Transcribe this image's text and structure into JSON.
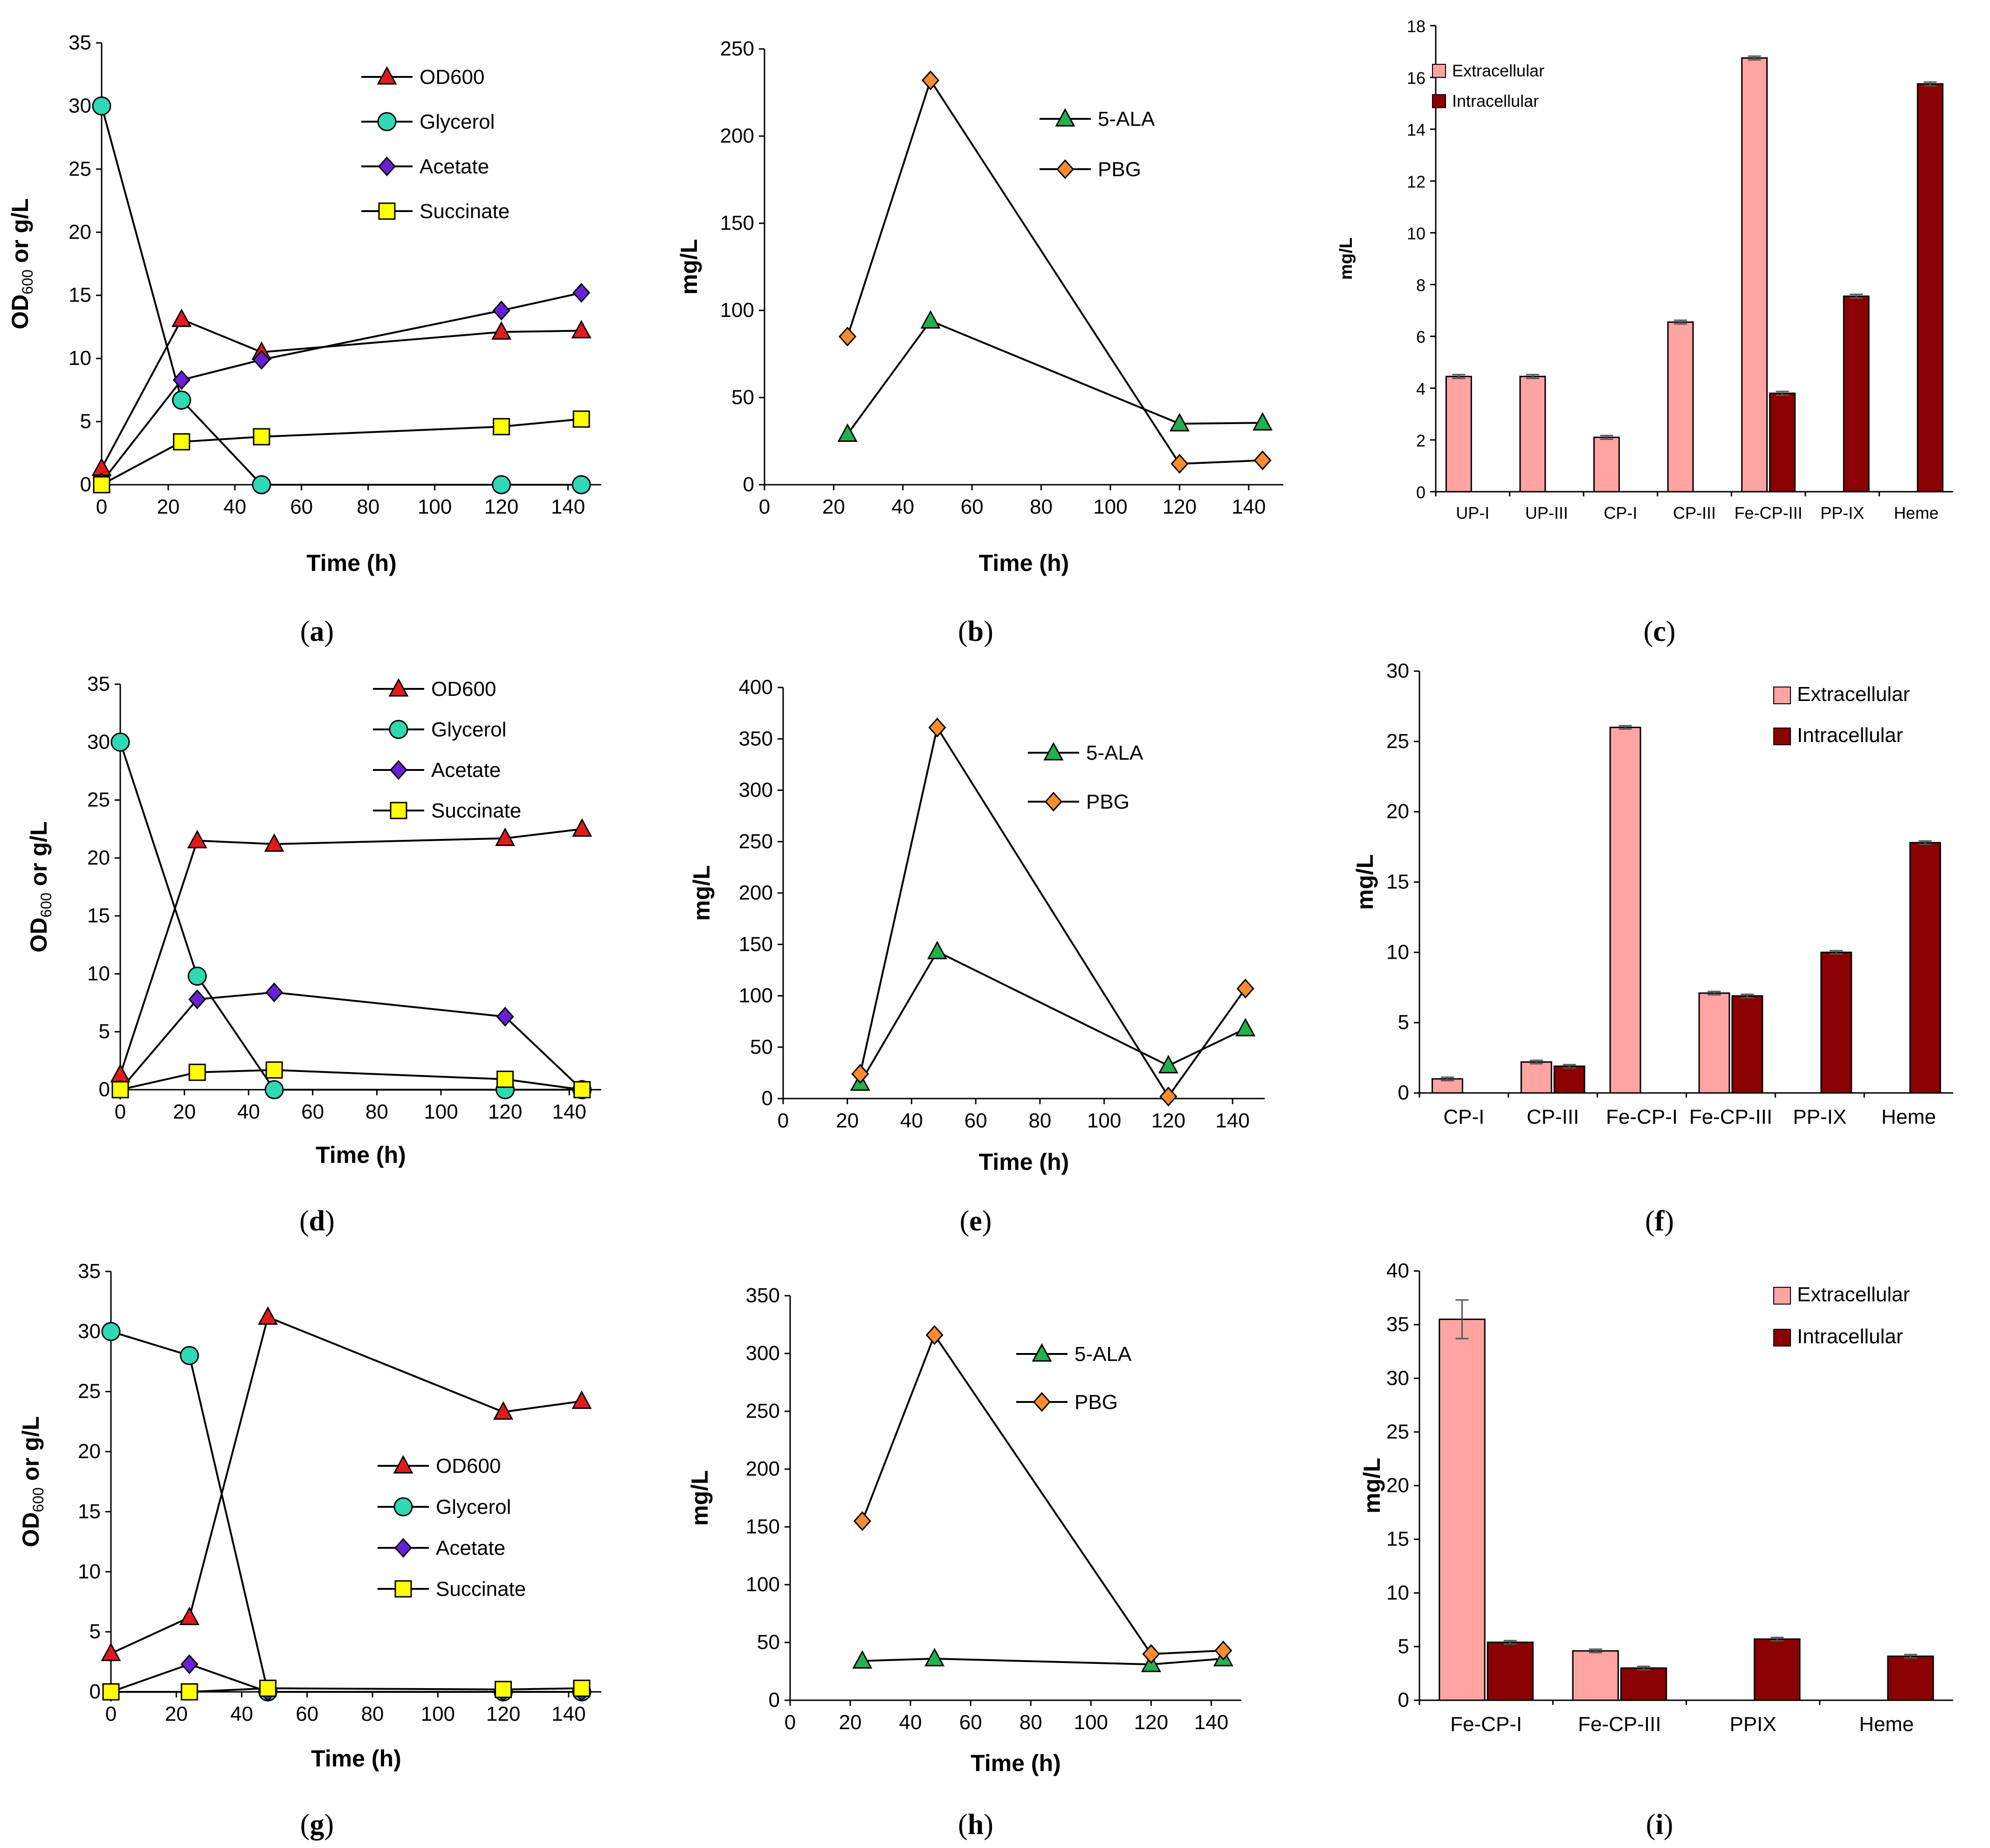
{
  "colors": {
    "OD600": "#e31a1c",
    "Glycerol": "#2ed9b4",
    "Acetate": "#6a1fd6",
    "Succinate": "#ffff00",
    "ALA": "#22b14c",
    "PBG": "#ff8c2e",
    "Extracellular": "#ffa3a3",
    "Intracellular": "#8b0000"
  },
  "chart_data": [
    {
      "id": "a",
      "caption": "a",
      "type": "line",
      "xlabel": "Time (h)",
      "ylabel_main": "OD",
      "ylabel_sub": "600",
      "ylabel_rest": " or g/L",
      "xlim": [
        0,
        150
      ],
      "ylim": [
        0,
        35
      ],
      "xticks": [
        "0",
        "20",
        "40",
        "60",
        "80",
        "100",
        "120",
        "140"
      ],
      "yticks": [
        "0",
        "5",
        "10",
        "15",
        "20",
        "25",
        "30",
        "35"
      ],
      "legend_position": "top-right",
      "series": [
        {
          "name": "OD600",
          "marker": "triangle",
          "color_key": "OD600",
          "x": [
            0,
            24,
            48,
            120,
            144
          ],
          "y": [
            1.3,
            13.1,
            10.5,
            12.1,
            12.2
          ]
        },
        {
          "name": "Glycerol",
          "marker": "circle",
          "color_key": "Glycerol",
          "x": [
            0,
            24,
            48,
            120,
            144
          ],
          "y": [
            30,
            6.7,
            0,
            0,
            0
          ]
        },
        {
          "name": "Acetate",
          "marker": "diamond",
          "color_key": "Acetate",
          "x": [
            0,
            24,
            48,
            120,
            144
          ],
          "y": [
            0.2,
            8.3,
            9.9,
            13.8,
            15.2
          ]
        },
        {
          "name": "Succinate",
          "marker": "square",
          "color_key": "Succinate",
          "x": [
            0,
            24,
            48,
            120,
            144
          ],
          "y": [
            0,
            3.4,
            3.8,
            4.6,
            5.2
          ]
        }
      ]
    },
    {
      "id": "b",
      "caption": "b",
      "type": "line",
      "xlabel": "Time (h)",
      "ylabel": "mg/L",
      "xlim": [
        0,
        150
      ],
      "ylim": [
        0,
        250
      ],
      "xticks": [
        "0",
        "20",
        "40",
        "60",
        "80",
        "100",
        "120",
        "140"
      ],
      "yticks": [
        "0",
        "50",
        "100",
        "150",
        "200",
        "250"
      ],
      "legend_position": "top-right",
      "series": [
        {
          "name": "5-ALA",
          "marker": "triangle",
          "color_key": "ALA",
          "x": [
            24,
            48,
            120,
            144
          ],
          "y": [
            29,
            94,
            35,
            35.5
          ]
        },
        {
          "name": "PBG",
          "marker": "diamond",
          "color_key": "PBG",
          "x": [
            24,
            48,
            120,
            144
          ],
          "y": [
            85,
            232,
            12,
            14
          ]
        }
      ]
    },
    {
      "id": "c",
      "caption": "c",
      "type": "bar",
      "ylabel": "mg/L",
      "ylim": [
        0,
        18
      ],
      "yticks": [
        "0",
        "2",
        "4",
        "6",
        "8",
        "10",
        "12",
        "14",
        "16",
        "18"
      ],
      "categories": [
        "UP-I",
        "UP-III",
        "CP-I",
        "CP-III",
        "Fe-CP-III",
        "PP-IX",
        "Heme"
      ],
      "legend_position": "top-left",
      "series": [
        {
          "name": "Extracellular",
          "color_key": "Extracellular",
          "values": [
            4.45,
            4.45,
            2.1,
            6.55,
            16.75,
            null,
            null
          ]
        },
        {
          "name": "Intracellular",
          "color_key": "Intracellular",
          "values": [
            null,
            null,
            null,
            null,
            3.8,
            7.55,
            15.75
          ]
        }
      ]
    },
    {
      "id": "d",
      "caption": "d",
      "type": "line",
      "xlabel": "Time (h)",
      "ylabel_main": "OD",
      "ylabel_sub": "600",
      "ylabel_rest": " or g/L",
      "xlim": [
        0,
        150
      ],
      "ylim": [
        0,
        35
      ],
      "xticks": [
        "0",
        "20",
        "40",
        "60",
        "80",
        "100",
        "120",
        "140"
      ],
      "yticks": [
        "0",
        "5",
        "10",
        "15",
        "20",
        "25",
        "30",
        "35"
      ],
      "legend_position": "top-right",
      "series": [
        {
          "name": "OD600",
          "marker": "triangle",
          "color_key": "OD600",
          "x": [
            0,
            24,
            48,
            120,
            144
          ],
          "y": [
            1.3,
            21.5,
            21.2,
            21.7,
            22.5
          ]
        },
        {
          "name": "Glycerol",
          "marker": "circle",
          "color_key": "Glycerol",
          "x": [
            0,
            24,
            48,
            120,
            144
          ],
          "y": [
            30,
            9.8,
            0,
            0,
            0
          ]
        },
        {
          "name": "Acetate",
          "marker": "diamond",
          "color_key": "Acetate",
          "x": [
            0,
            24,
            48,
            120,
            144
          ],
          "y": [
            0,
            7.8,
            8.4,
            6.3,
            0
          ]
        },
        {
          "name": "Succinate",
          "marker": "square",
          "color_key": "Succinate",
          "x": [
            0,
            24,
            48,
            120,
            144
          ],
          "y": [
            0,
            1.5,
            1.7,
            0.9,
            0
          ]
        }
      ]
    },
    {
      "id": "e",
      "caption": "e",
      "type": "line",
      "xlabel": "Time (h)",
      "ylabel": "mg/L",
      "xlim": [
        0,
        150
      ],
      "ylim": [
        0,
        400
      ],
      "xticks": [
        "0",
        "20",
        "40",
        "60",
        "80",
        "100",
        "120",
        "140"
      ],
      "yticks": [
        "0",
        "50",
        "100",
        "150",
        "200",
        "250",
        "300",
        "350",
        "400"
      ],
      "legend_position": "top-right",
      "series": [
        {
          "name": "5-ALA",
          "marker": "triangle",
          "color_key": "ALA",
          "x": [
            24,
            48,
            120,
            144
          ],
          "y": [
            15,
            143,
            32,
            68
          ]
        },
        {
          "name": "PBG",
          "marker": "diamond",
          "color_key": "PBG",
          "x": [
            24,
            48,
            120,
            144
          ],
          "y": [
            24,
            361,
            2,
            107
          ]
        }
      ]
    },
    {
      "id": "f",
      "caption": "f",
      "type": "bar",
      "ylabel": "mg/L",
      "ylim": [
        0,
        30
      ],
      "yticks": [
        "0",
        "5",
        "10",
        "15",
        "20",
        "25",
        "30"
      ],
      "categories": [
        "CP-I",
        "CP-III",
        "Fe-CP-I",
        "Fe-CP-III",
        "PP-IX",
        "Heme"
      ],
      "legend_position": "top-right",
      "series": [
        {
          "name": "Extracellular",
          "color_key": "Extracellular",
          "values": [
            1.0,
            2.2,
            26.0,
            7.1,
            null,
            null
          ]
        },
        {
          "name": "Intracellular",
          "color_key": "Intracellular",
          "values": [
            null,
            1.9,
            null,
            6.9,
            10.0,
            17.8
          ]
        }
      ]
    },
    {
      "id": "g",
      "caption": "g",
      "type": "line",
      "xlabel": "Time (h)",
      "ylabel_main": "OD",
      "ylabel_sub": "600",
      "ylabel_rest": " or g/L",
      "xlim": [
        0,
        150
      ],
      "ylim": [
        0,
        35
      ],
      "xticks": [
        "0",
        "20",
        "40",
        "60",
        "80",
        "100",
        "120",
        "140"
      ],
      "yticks": [
        "0",
        "5",
        "10",
        "15",
        "20",
        "25",
        "30",
        "35"
      ],
      "legend_position": "middle-right",
      "series": [
        {
          "name": "OD600",
          "marker": "triangle",
          "color_key": "OD600",
          "x": [
            0,
            24,
            48,
            120,
            144
          ],
          "y": [
            3.2,
            6.2,
            31.2,
            23.3,
            24.2
          ]
        },
        {
          "name": "Glycerol",
          "marker": "circle",
          "color_key": "Glycerol",
          "x": [
            0,
            24,
            48,
            120,
            144
          ],
          "y": [
            30,
            28,
            0,
            0,
            0
          ]
        },
        {
          "name": "Acetate",
          "marker": "diamond",
          "color_key": "Acetate",
          "x": [
            0,
            24,
            48,
            120,
            144
          ],
          "y": [
            0,
            2.3,
            0,
            0,
            0
          ]
        },
        {
          "name": "Succinate",
          "marker": "square",
          "color_key": "Succinate",
          "x": [
            0,
            24,
            48,
            120,
            144
          ],
          "y": [
            0,
            0,
            0.3,
            0.2,
            0.3
          ]
        }
      ]
    },
    {
      "id": "h",
      "caption": "h",
      "type": "line",
      "xlabel": "Time (h)",
      "ylabel": "mg/L",
      "xlim": [
        0,
        150
      ],
      "ylim": [
        0,
        350
      ],
      "xticks": [
        "0",
        "20",
        "40",
        "60",
        "80",
        "100",
        "120",
        "140"
      ],
      "yticks": [
        "0",
        "50",
        "100",
        "150",
        "200",
        "250",
        "300",
        "350"
      ],
      "legend_position": "top-right",
      "series": [
        {
          "name": "5-ALA",
          "marker": "triangle",
          "color_key": "ALA",
          "x": [
            24,
            48,
            120,
            144
          ],
          "y": [
            34,
            36,
            31,
            36
          ]
        },
        {
          "name": "PBG",
          "marker": "diamond",
          "color_key": "PBG",
          "x": [
            24,
            48,
            120,
            144
          ],
          "y": [
            155,
            316,
            40,
            43
          ]
        }
      ]
    },
    {
      "id": "i",
      "caption": "i",
      "type": "bar",
      "ylabel": "mg/L",
      "ylim": [
        0,
        40
      ],
      "yticks": [
        "0",
        "5",
        "10",
        "15",
        "20",
        "25",
        "30",
        "35",
        "40"
      ],
      "categories": [
        "Fe-CP-I",
        "Fe-CP-III",
        "PPIX",
        "Heme"
      ],
      "legend_position": "top-right",
      "series": [
        {
          "name": "Extracellular",
          "color_key": "Extracellular",
          "values": [
            35.5,
            4.6,
            null,
            null
          ]
        },
        {
          "name": "Intracellular",
          "color_key": "Intracellular",
          "values": [
            5.4,
            3.0,
            5.7,
            4.1
          ]
        }
      ]
    }
  ]
}
